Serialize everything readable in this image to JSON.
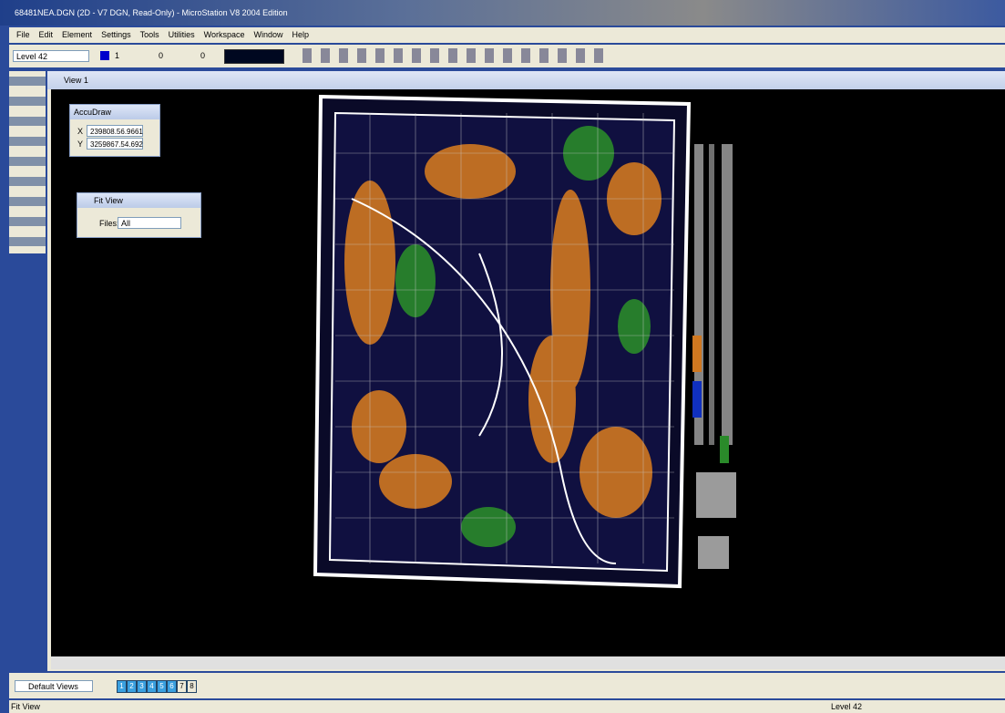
{
  "window": {
    "title": "68481NEA.DGN (2D - V7 DGN, Read-Only) - MicroStation V8 2004 Edition"
  },
  "menu": [
    "File",
    "Edit",
    "Element",
    "Settings",
    "Tools",
    "Utilities",
    "Workspace",
    "Window",
    "Help"
  ],
  "toolbar": {
    "level": "Level 42",
    "color": "1",
    "style": "0",
    "weight": "0"
  },
  "view": {
    "title": "View 1"
  },
  "accudraw": {
    "title": "AccuDraw",
    "x_label": "X",
    "x_value": "239808.56.9661",
    "y_label": "Y",
    "y_value": "3259867.54.692"
  },
  "fit_view": {
    "title": "Fit View",
    "files_label": "Files:",
    "files_value": "All"
  },
  "view_bar": {
    "label": "Default Views",
    "buttons": [
      "1",
      "2",
      "3",
      "4",
      "5",
      "6",
      "7",
      "8"
    ]
  },
  "status": {
    "message": "Fit View",
    "level": "Level 42"
  }
}
